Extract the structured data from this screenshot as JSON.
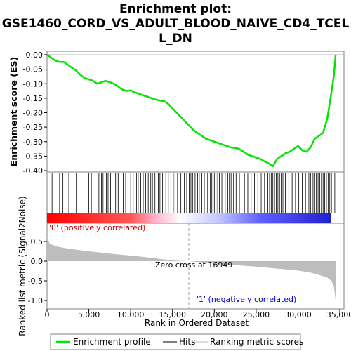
{
  "chart_data": {
    "type": "line",
    "title_lines": [
      "Enrichment plot:",
      "GSE1460_CORD_VS_ADULT_BLOOD_NAIVE_CD4_TCEL",
      "L_DN"
    ],
    "es_panel": {
      "ylabel": "Enrichment score (ES)",
      "ylim": [
        -0.4,
        0.0
      ],
      "yticks": [
        "0.00",
        "-0.05",
        "-0.10",
        "-0.15",
        "-0.20",
        "-0.25",
        "-0.30",
        "-0.35",
        "-0.40"
      ],
      "ytick_values": [
        0.0,
        -0.05,
        -0.1,
        -0.15,
        -0.2,
        -0.25,
        -0.3,
        -0.35,
        -0.4
      ],
      "series_name": "Enrichment profile",
      "color": "#00e600",
      "x": [
        0,
        500,
        1000,
        1500,
        2000,
        2500,
        3000,
        3500,
        4000,
        4500,
        5000,
        5500,
        6000,
        6500,
        7000,
        7500,
        8000,
        8500,
        9000,
        9500,
        10000,
        10500,
        11000,
        11500,
        12000,
        12500,
        13000,
        13500,
        14000,
        14500,
        15000,
        15500,
        16000,
        16500,
        17000,
        17500,
        18000,
        18500,
        19000,
        19500,
        20000,
        20500,
        21000,
        21500,
        22000,
        22500,
        23000,
        23500,
        24000,
        24500,
        25000,
        25500,
        26000,
        26500,
        27000,
        27500,
        28000,
        28500,
        29000,
        29500,
        30000,
        30500,
        31000,
        31500,
        32000,
        32500,
        33000,
        33500,
        34000,
        34300,
        34500
      ],
      "y": [
        0.0,
        -0.01,
        -0.02,
        -0.025,
        -0.025,
        -0.035,
        -0.045,
        -0.055,
        -0.07,
        -0.08,
        -0.085,
        -0.09,
        -0.1,
        -0.095,
        -0.09,
        -0.095,
        -0.1,
        -0.11,
        -0.12,
        -0.125,
        -0.123,
        -0.13,
        -0.135,
        -0.14,
        -0.145,
        -0.15,
        -0.155,
        -0.158,
        -0.16,
        -0.17,
        -0.185,
        -0.2,
        -0.215,
        -0.23,
        -0.245,
        -0.26,
        -0.27,
        -0.28,
        -0.29,
        -0.295,
        -0.3,
        -0.305,
        -0.31,
        -0.315,
        -0.32,
        -0.322,
        -0.325,
        -0.335,
        -0.345,
        -0.35,
        -0.355,
        -0.36,
        -0.368,
        -0.375,
        -0.385,
        -0.36,
        -0.35,
        -0.34,
        -0.335,
        -0.325,
        -0.315,
        -0.33,
        -0.335,
        -0.32,
        -0.29,
        -0.28,
        -0.27,
        -0.22,
        -0.13,
        -0.07,
        0.0
      ]
    },
    "hits_panel": {
      "series_name": "Hits",
      "hit_positions": [
        600,
        1500,
        1900,
        2600,
        3500,
        5000,
        5300,
        6200,
        6500,
        6700,
        7100,
        7300,
        7600,
        8200,
        8500,
        9100,
        9400,
        9700,
        10000,
        10300,
        10700,
        10900,
        11200,
        11500,
        11800,
        12100,
        12400,
        12600,
        12900,
        13300,
        13500,
        13800,
        14200,
        14500,
        14800,
        15100,
        15300,
        15600,
        16000,
        16400,
        16700,
        17000,
        17200,
        17400,
        17700,
        18000,
        18200,
        18500,
        18800,
        19000,
        19200,
        19500,
        19700,
        20000,
        20200,
        20400,
        20600,
        20900,
        21300,
        21600,
        21800,
        22000,
        22300,
        22600,
        23000,
        23600,
        24000,
        24400,
        24800,
        25200,
        25600,
        26000,
        26400,
        26600,
        26800,
        27000,
        27200,
        27400,
        27600,
        27800,
        28000,
        28200,
        28500,
        28900,
        29300,
        29700,
        30100,
        30500,
        30900,
        31300,
        31500,
        31800,
        32000,
        32200,
        32400,
        32600,
        32800,
        33000,
        33200,
        33400,
        33600,
        33800,
        34000,
        34200,
        34400
      ]
    },
    "ranked_panel": {
      "ylabel": "Ranked list metric (Signal2Noise)",
      "ylim": [
        -1.0,
        0.75
      ],
      "yticks": [
        "0.5",
        "0.0",
        "-0.5",
        "-1.0"
      ],
      "ytick_values": [
        0.5,
        0.0,
        -0.5,
        -1.0
      ],
      "series_name": "Ranking metric scores",
      "x": [
        0,
        300,
        1000,
        2500,
        5000,
        8000,
        11000,
        13000,
        14500,
        15500,
        16949,
        18000,
        20000,
        22500,
        25000,
        27500,
        30000,
        31500,
        32500,
        33500,
        34000,
        34300,
        34500
      ],
      "y": [
        0.62,
        0.45,
        0.38,
        0.32,
        0.25,
        0.18,
        0.12,
        0.07,
        0.03,
        0.01,
        0.0,
        -0.02,
        -0.06,
        -0.1,
        -0.14,
        -0.19,
        -0.24,
        -0.29,
        -0.35,
        -0.42,
        -0.5,
        -0.65,
        -1.0
      ],
      "zero_cross_label": "Zero cross at 16949",
      "zero_cross_x": 16949,
      "pos_label": "'0' (positively correlated)",
      "neg_label": "'1' (negatively correlated)"
    },
    "xlabel": "Rank in Ordered Dataset",
    "xlim": [
      0,
      35500
    ],
    "xticks": [
      "0",
      "5,000",
      "10,000",
      "15,000",
      "20,000",
      "25,000",
      "30,000",
      "35,000"
    ],
    "xtick_values": [
      0,
      5000,
      10000,
      15000,
      20000,
      25000,
      30000,
      35000
    ],
    "legend": {
      "placement": "bottom",
      "entries": [
        "Enrichment profile",
        "Hits",
        "Ranking metric scores"
      ]
    }
  }
}
